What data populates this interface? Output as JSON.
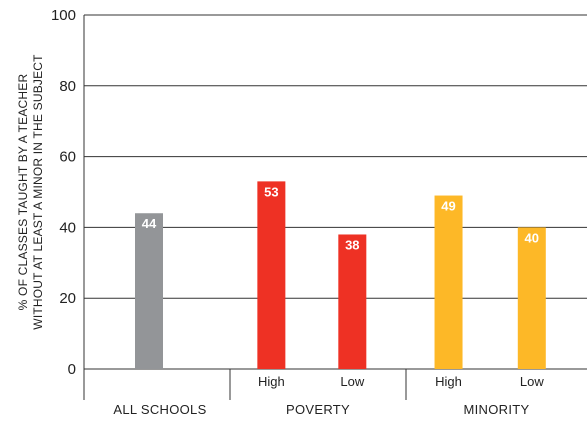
{
  "chart_data": {
    "type": "bar",
    "ylabel_lines": [
      "% OF CLASSES TAUGHT BY A TEACHER",
      "WITHOUT AT LEAST A MINOR IN THE SUBJECT"
    ],
    "ylim": [
      0,
      100
    ],
    "yticks": [
      "0",
      "20",
      "40",
      "60",
      "80",
      "100"
    ],
    "grid": true,
    "groups": [
      {
        "label": "ALL SCHOOLS",
        "bars": [
          {
            "category": "",
            "value": 44,
            "label": "44",
            "color": "#939598"
          }
        ]
      },
      {
        "label": "POVERTY",
        "bars": [
          {
            "category": "High",
            "value": 53,
            "label": "53",
            "color": "#ee3124"
          },
          {
            "category": "Low",
            "value": 38,
            "label": "38",
            "color": "#ee3124"
          }
        ]
      },
      {
        "label": "MINORITY",
        "bars": [
          {
            "category": "High",
            "value": 49,
            "label": "49",
            "color": "#fdb827"
          },
          {
            "category": "Low",
            "value": 40,
            "label": "40",
            "color": "#fdb827"
          }
        ]
      }
    ]
  }
}
